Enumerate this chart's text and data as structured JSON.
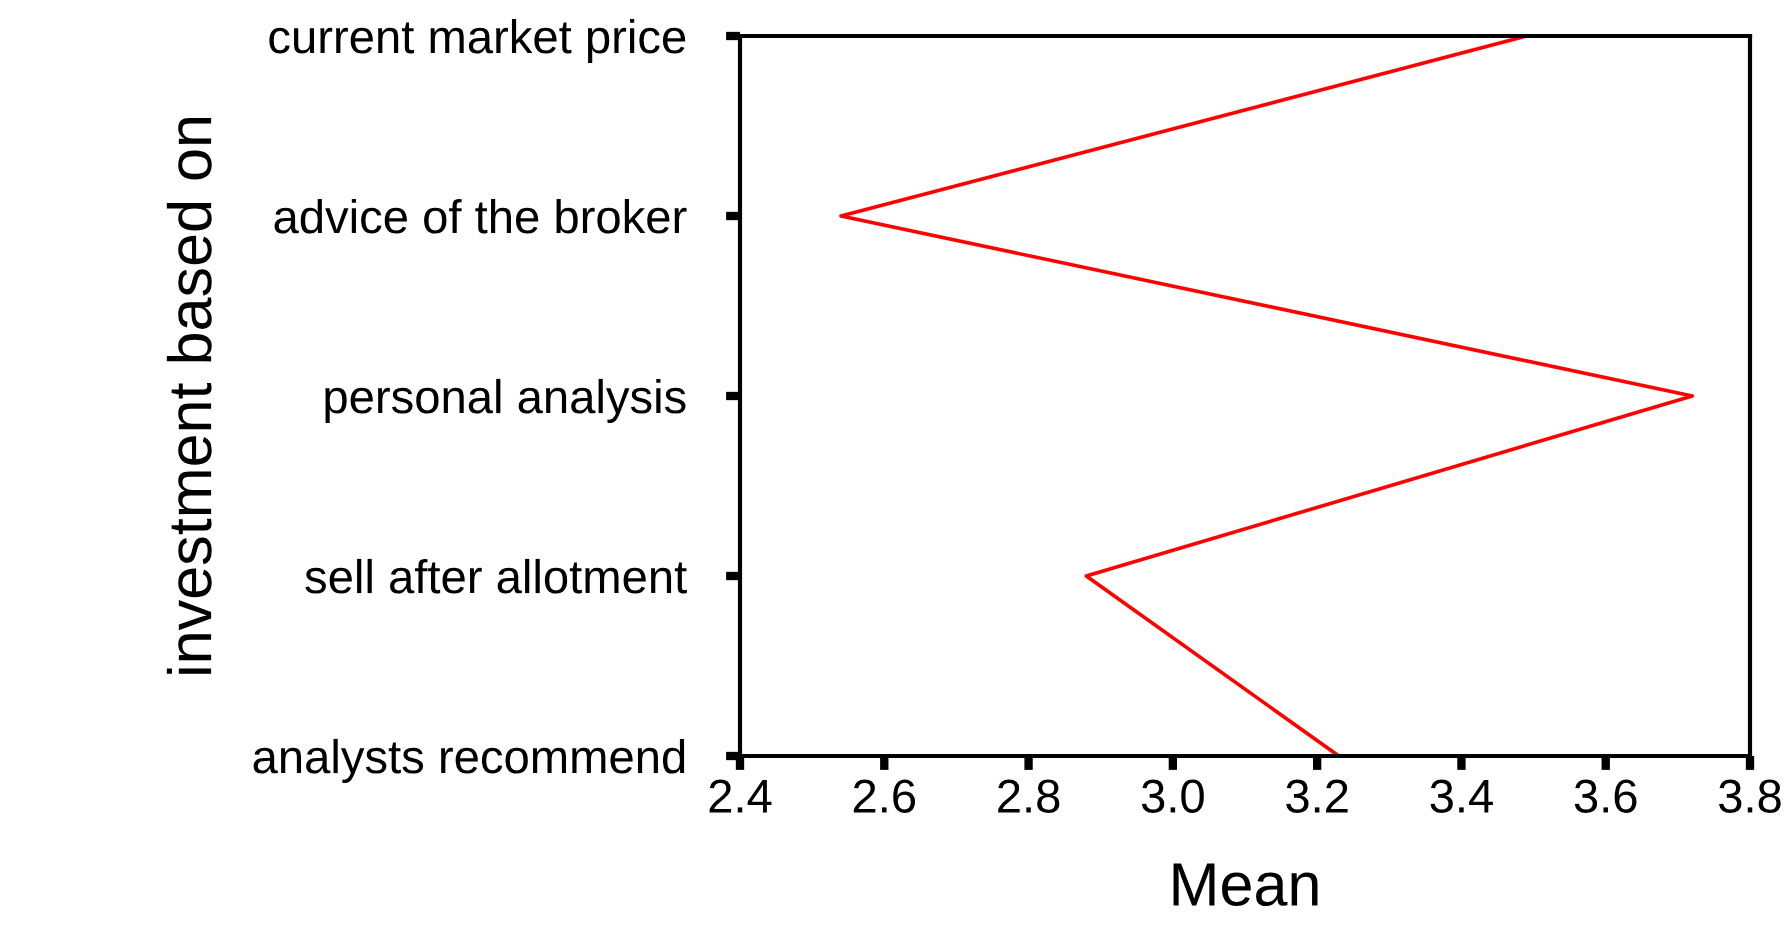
{
  "chart_data": {
    "type": "line",
    "orientation": "horizontal",
    "categories": [
      "current market price",
      "advice of the broker",
      "personal analysis",
      "sell after allotment",
      "analysts recommend"
    ],
    "values": [
      3.49,
      2.54,
      3.72,
      2.88,
      3.23
    ],
    "color": "#ff0000",
    "xlabel": "Mean",
    "ylabel": "investment based on",
    "xlim": [
      2.4,
      3.8
    ],
    "xticks": [
      2.4,
      2.6,
      2.8,
      {
        "value": 3,
        "label": "3.0"
      },
      3.2,
      3.4,
      3.6,
      3.8
    ],
    "grid": false,
    "legend": false,
    "marker": "none",
    "line_style": "solid"
  }
}
